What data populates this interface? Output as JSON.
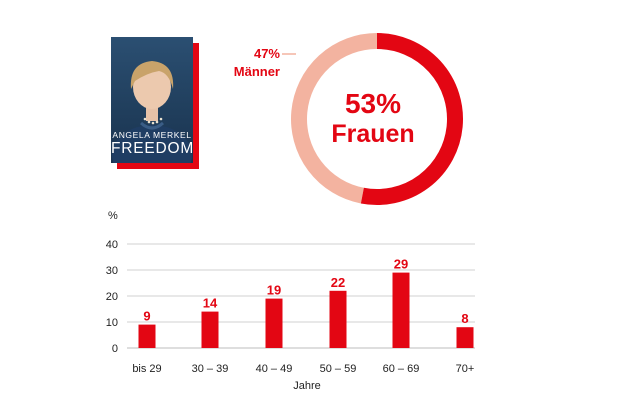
{
  "book": {
    "author": "ANGELA MERKEL",
    "title": "FREEDOM",
    "accent": "#e30613"
  },
  "donut": {
    "women_pct": "53%",
    "women_label": "Frauen",
    "men_pct": "47%",
    "men_label": "Männer",
    "women_value": 53,
    "men_value": 47,
    "women_color": "#e30613",
    "men_color": "#f3b3a0"
  },
  "chart_data": [
    {
      "type": "pie",
      "categories": [
        "Frauen",
        "Männer"
      ],
      "values": [
        53,
        47
      ],
      "title": "",
      "legend": "none"
    },
    {
      "type": "bar",
      "categories": [
        "bis 29",
        "30 – 39",
        "40 – 49",
        "50 – 59",
        "60 – 69",
        "70+"
      ],
      "values": [
        9,
        14,
        19,
        22,
        29,
        8
      ],
      "title": "",
      "xlabel": "Jahre",
      "ylabel": "%",
      "ylim": [
        0,
        40
      ],
      "yticks": [
        0,
        10,
        20,
        30,
        40
      ],
      "grid": true,
      "bar_color": "#e30613"
    }
  ]
}
